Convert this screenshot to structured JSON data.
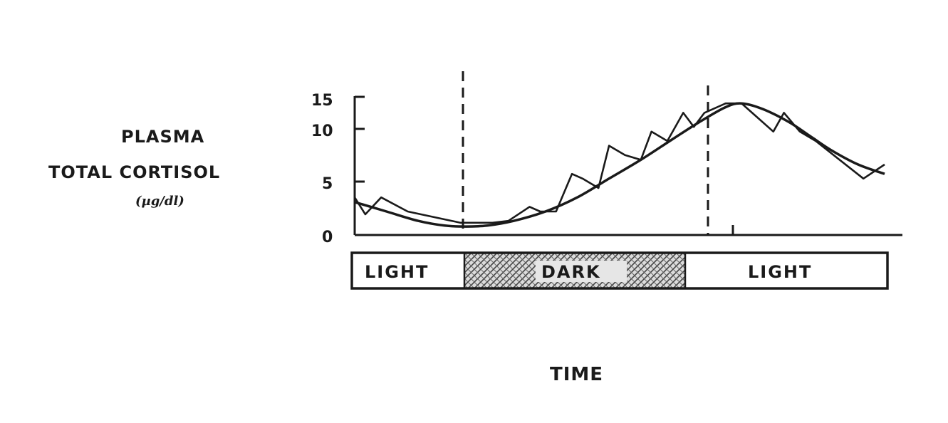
{
  "chart_data": {
    "type": "line",
    "ylabel": [
      "PLASMA",
      "TOTAL CORTISOL",
      "(µg/dl)"
    ],
    "xlabel": "TIME",
    "yticks": [
      "15",
      "10",
      "5",
      "0"
    ],
    "ylim": [
      0,
      15
    ],
    "series": [
      {
        "style": "jagged",
        "x": [
          0,
          2,
          5,
          10,
          20,
          22,
          26,
          29,
          33,
          35,
          38,
          41,
          43,
          46,
          48,
          51,
          54,
          56,
          59,
          62,
          64,
          66,
          70,
          73,
          75,
          79,
          81,
          84,
          87,
          96,
          100
        ],
        "y": [
          4,
          2.2,
          4,
          2.5,
          1.3,
          1.3,
          1.3,
          1.5,
          3,
          2.5,
          2.5,
          6.5,
          6,
          5,
          9.5,
          8.5,
          8,
          11,
          10,
          13,
          11.5,
          13,
          14,
          14,
          13,
          11,
          13,
          11,
          10,
          6,
          7.5
        ]
      },
      {
        "style": "smooth",
        "x": [
          0,
          6,
          12,
          17,
          21,
          25,
          30,
          36,
          42,
          48,
          54,
          60,
          65,
          70,
          73,
          77,
          82,
          86,
          90,
          95,
          100
        ],
        "y": [
          3.5,
          2.5,
          1.5,
          1,
          0.9,
          1,
          1.5,
          2.5,
          4,
          6,
          8,
          10.2,
          12,
          13.6,
          14,
          13.4,
          12,
          10.5,
          9,
          7.5,
          6.5
        ]
      }
    ],
    "light_dark_bands": [
      {
        "label": "LIGHT",
        "fill": "#ffffff"
      },
      {
        "label": "DARK",
        "fill": "hatched"
      },
      {
        "label": "LIGHT",
        "fill": "#ffffff"
      }
    ]
  }
}
